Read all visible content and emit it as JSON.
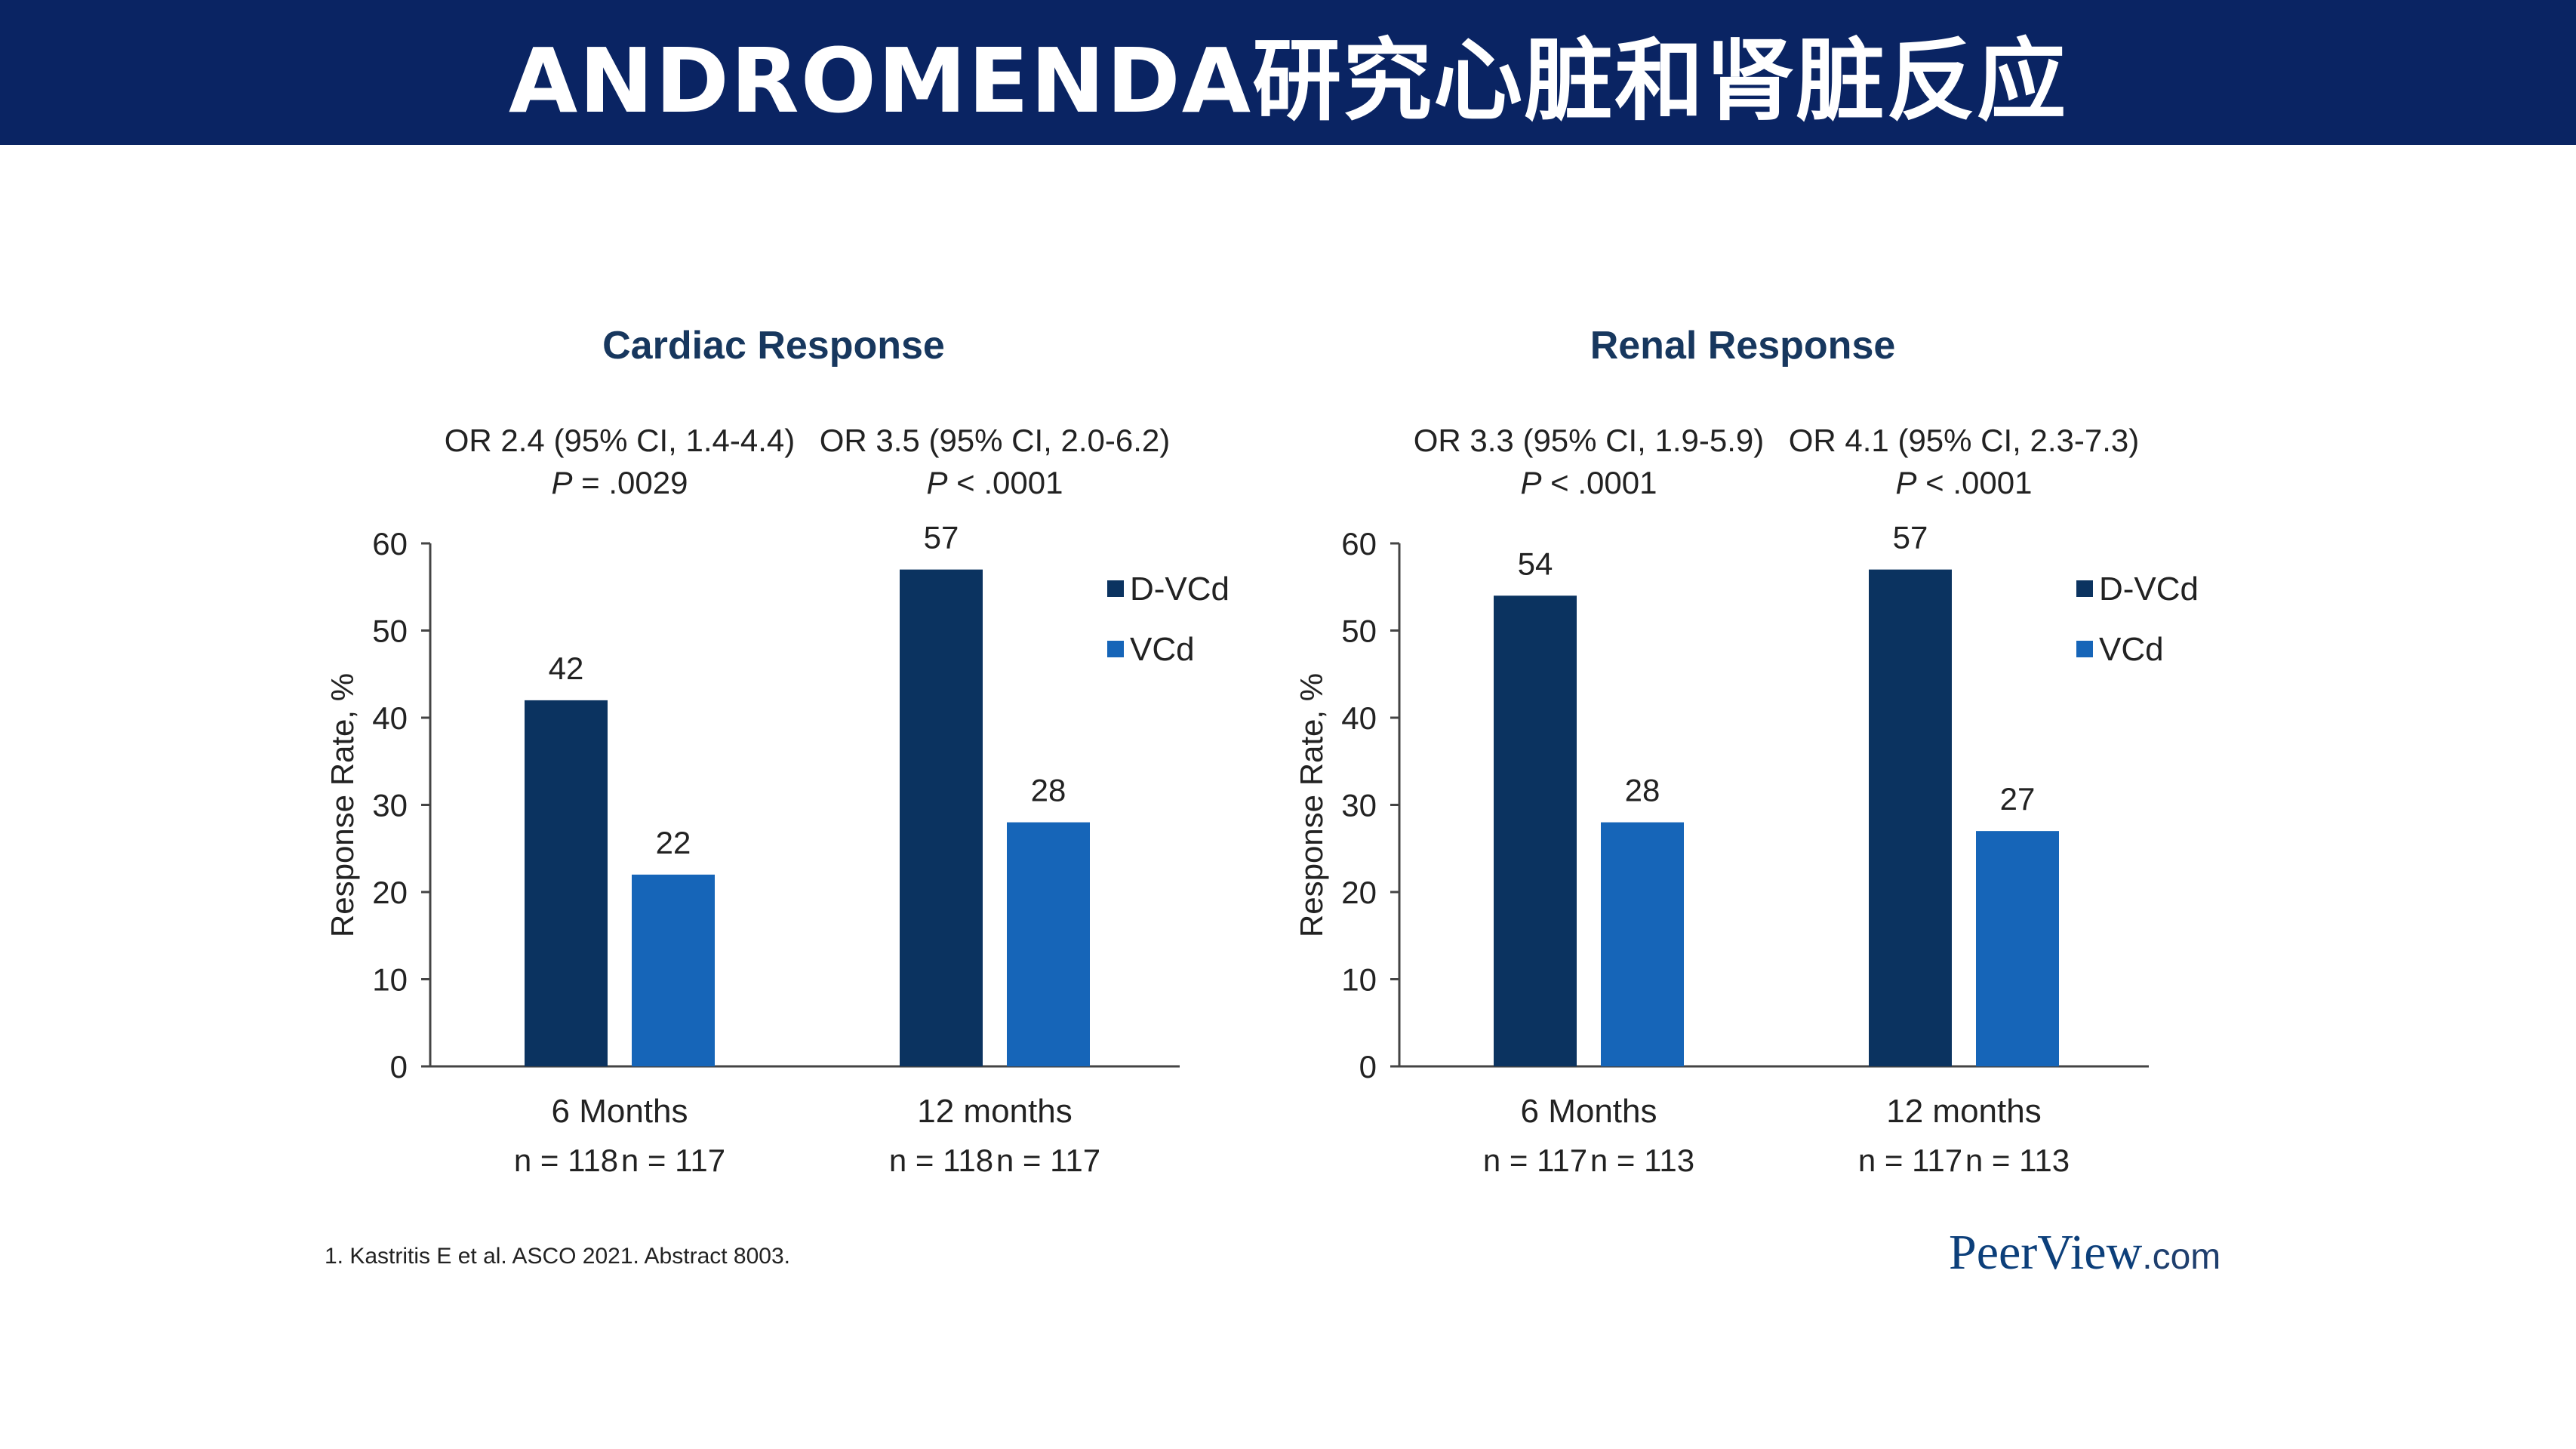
{
  "slide": {
    "title": "ANDROMENDA研究心脏和肾脏反应",
    "footnote": "1. Kastritis E et al. ASCO 2021. Abstract 8003.",
    "logo_main": "PeerView",
    "logo_suffix": ".com"
  },
  "colors": {
    "title_bar": "#0a2463",
    "D-VCd": "#0b3360",
    "VCd": "#1665b8",
    "chart_title": "#17375e"
  },
  "chart_data": [
    {
      "type": "bar",
      "title": "Cardiac Response",
      "ylabel": "Response Rate, %",
      "ylim": [
        0,
        60
      ],
      "yticks": [
        "0",
        "10",
        "20",
        "30",
        "40",
        "50",
        "60"
      ],
      "categories": [
        "6 Months",
        "12 months"
      ],
      "n_labels": [
        [
          "n = 118",
          "n = 117"
        ],
        [
          "n = 118",
          "n = 117"
        ]
      ],
      "series": [
        {
          "name": "D-VCd",
          "values": [
            42,
            57
          ]
        },
        {
          "name": "VCd",
          "values": [
            22,
            28
          ]
        }
      ],
      "annotations": [
        {
          "or": "OR 2.4 (95% CI, 1.4-4.4)",
          "p_symbol": "P",
          "p_value": " = .0029"
        },
        {
          "or": "OR 3.5 (95% CI, 2.0-6.2)",
          "p_symbol": "P",
          "p_value": " < .0001"
        }
      ],
      "legend_position": "right",
      "grid": false
    },
    {
      "type": "bar",
      "title": "Renal Response",
      "ylabel": "Response Rate, %",
      "ylim": [
        0,
        60
      ],
      "yticks": [
        "0",
        "10",
        "20",
        "30",
        "40",
        "50",
        "60"
      ],
      "categories": [
        "6 Months",
        "12 months"
      ],
      "n_labels": [
        [
          "n = 117",
          "n = 113"
        ],
        [
          "n = 117",
          "n = 113"
        ]
      ],
      "series": [
        {
          "name": "D-VCd",
          "values": [
            54,
            57
          ]
        },
        {
          "name": "VCd",
          "values": [
            28,
            27
          ]
        }
      ],
      "annotations": [
        {
          "or": "OR 3.3 (95% CI, 1.9-5.9)",
          "p_symbol": "P",
          "p_value": " < .0001"
        },
        {
          "or": "OR 4.1 (95% CI, 2.3-7.3)",
          "p_symbol": "P",
          "p_value": " < .0001"
        }
      ],
      "legend_position": "right",
      "grid": false
    }
  ]
}
